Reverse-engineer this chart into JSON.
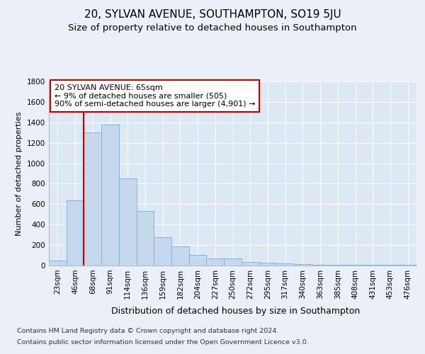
{
  "title1": "20, SYLVAN AVENUE, SOUTHAMPTON, SO19 5JU",
  "title2": "Size of property relative to detached houses in Southampton",
  "xlabel": "Distribution of detached houses by size in Southampton",
  "ylabel": "Number of detached properties",
  "categories": [
    "23sqm",
    "46sqm",
    "68sqm",
    "91sqm",
    "114sqm",
    "136sqm",
    "159sqm",
    "182sqm",
    "204sqm",
    "227sqm",
    "250sqm",
    "272sqm",
    "295sqm",
    "317sqm",
    "340sqm",
    "363sqm",
    "385sqm",
    "408sqm",
    "431sqm",
    "453sqm",
    "476sqm"
  ],
  "values": [
    50,
    640,
    1300,
    1380,
    850,
    530,
    280,
    185,
    105,
    70,
    70,
    35,
    30,
    20,
    15,
    10,
    10,
    10,
    10,
    10,
    10
  ],
  "bar_color": "#c5d8ed",
  "bar_edge_color": "#7aaed6",
  "vline_idx": 2,
  "vline_color": "#cc0000",
  "annotation_text": "20 SYLVAN AVENUE: 65sqm\n← 9% of detached houses are smaller (505)\n90% of semi-detached houses are larger (4,901) →",
  "annotation_bg": "#ffffff",
  "annotation_edge": "#cc0000",
  "ylim": [
    0,
    1800
  ],
  "yticks": [
    0,
    200,
    400,
    600,
    800,
    1000,
    1200,
    1400,
    1600,
    1800
  ],
  "bg_color": "#eaeff8",
  "plot_bg_color": "#dce8f4",
  "grid_color": "#ffffff",
  "footnote1": "Contains HM Land Registry data © Crown copyright and database right 2024.",
  "footnote2": "Contains public sector information licensed under the Open Government Licence v3.0.",
  "title1_fontsize": 11,
  "title2_fontsize": 9.5,
  "xlabel_fontsize": 9,
  "ylabel_fontsize": 8,
  "tick_fontsize": 7.5,
  "annot_fontsize": 8,
  "footnote_fontsize": 6.8
}
